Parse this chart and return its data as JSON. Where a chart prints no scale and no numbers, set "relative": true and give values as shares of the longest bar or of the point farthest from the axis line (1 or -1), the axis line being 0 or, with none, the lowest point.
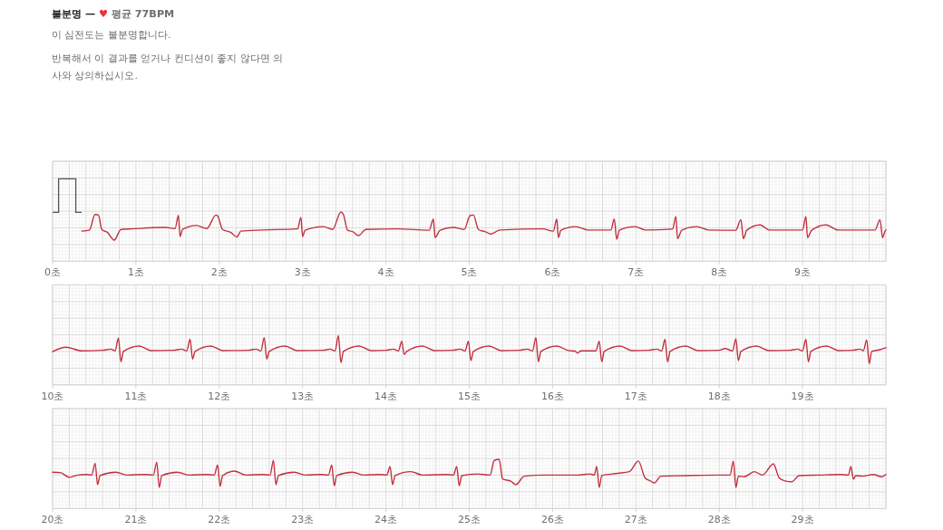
{
  "chart_data": [
    {
      "type": "line",
      "title": "불분명 — ♥ 평균 77BPM",
      "subtitle": "이 심전도는 불분명합니다.",
      "annotations": [
        "반복해서 이 결과를 얻거나 컨디션이 좋지 않다면 의사와 상의하십시오."
      ],
      "relative": true,
      "grid": true,
      "xlim": [
        0,
        10
      ],
      "xticks": [
        {
          "value": 0,
          "label": "0초"
        },
        {
          "value": 1,
          "label": "1초"
        },
        {
          "value": 2,
          "label": "2초"
        },
        {
          "value": 3,
          "label": "3초"
        },
        {
          "value": 4,
          "label": "4초"
        },
        {
          "value": 5,
          "label": "5초"
        },
        {
          "value": 6,
          "label": "6초"
        },
        {
          "value": 7,
          "label": "7초"
        },
        {
          "value": 8,
          "label": "8초"
        },
        {
          "value": 9,
          "label": "9초"
        }
      ],
      "x": [
        0.35,
        0.44,
        0.51,
        0.55,
        0.59,
        0.66,
        0.74,
        0.82,
        0.95,
        1.35,
        1.47,
        1.51,
        1.53,
        1.56,
        1.73,
        1.85,
        1.96,
        1.98,
        2.04,
        2.14,
        2.21,
        2.26,
        2.51,
        2.94,
        2.98,
        3.0,
        3.03,
        3.25,
        3.36,
        3.46,
        3.49,
        3.54,
        3.61,
        3.67,
        3.76,
        4.14,
        4.52,
        4.57,
        4.59,
        4.65,
        4.81,
        4.94,
        5.01,
        5.05,
        5.11,
        5.19,
        5.26,
        5.37,
        5.88,
        6.01,
        6.05,
        6.07,
        6.1,
        6.28,
        6.42,
        6.7,
        6.74,
        6.77,
        6.8,
        6.99,
        7.11,
        7.44,
        7.48,
        7.5,
        7.55,
        7.73,
        7.87,
        8.2,
        8.26,
        8.29,
        8.33,
        8.49,
        8.6,
        9.0,
        9.04,
        9.06,
        9.11,
        9.28,
        9.43,
        9.87,
        9.93,
        9.96,
        9.99,
        10
      ],
      "series": [
        {
          "color": "#c3303f",
          "values": [
            0.32,
            0.35,
            0.91,
            0.89,
            0.38,
            0.27,
            0,
            0.38,
            0.4,
            0.45,
            0.41,
            0.88,
            0.13,
            0.38,
            0.52,
            0.41,
            0.89,
            0.86,
            0.38,
            0.27,
            0.11,
            0.32,
            0.36,
            0.4,
            0.81,
            0.13,
            0.35,
            0.48,
            0.38,
            1,
            0.91,
            0.35,
            0.29,
            0.16,
            0.38,
            0.4,
            0.35,
            0.75,
            0.09,
            0.35,
            0.45,
            0.38,
            0.87,
            0.89,
            0.38,
            0.3,
            0.22,
            0.36,
            0.4,
            0.32,
            0.75,
            0.09,
            0.35,
            0.48,
            0.36,
            0.36,
            0.75,
            0.03,
            0.35,
            0.48,
            0.36,
            0.39,
            0.84,
            0.05,
            0.35,
            0.48,
            0.36,
            0.35,
            0.73,
            0.05,
            0.35,
            0.54,
            0.36,
            0.36,
            0.84,
            0.09,
            0.35,
            0.54,
            0.36,
            0.36,
            0.73,
            0.09,
            0.32,
            0.36
          ]
        }
      ]
    },
    {
      "type": "line",
      "relative": true,
      "grid": true,
      "xlim": [
        10,
        20
      ],
      "xticks": [
        {
          "value": 10,
          "label": "10초"
        },
        {
          "value": 11,
          "label": "11초"
        },
        {
          "value": 12,
          "label": "12초"
        },
        {
          "value": 13,
          "label": "13초"
        },
        {
          "value": 14,
          "label": "14초"
        },
        {
          "value": 15,
          "label": "15초"
        },
        {
          "value": 16,
          "label": "16초"
        },
        {
          "value": 17,
          "label": "17초"
        },
        {
          "value": 18,
          "label": "18초"
        },
        {
          "value": 19,
          "label": "19초"
        }
      ],
      "x": [
        10,
        10.16,
        10.35,
        10.6,
        10.7,
        10.75,
        10.79,
        10.82,
        10.85,
        11.04,
        11.18,
        11.45,
        11.55,
        11.61,
        11.65,
        11.68,
        11.71,
        11.9,
        12.04,
        12.35,
        12.44,
        12.5,
        12.54,
        12.57,
        12.6,
        12.79,
        12.93,
        13.25,
        13.33,
        13.39,
        13.43,
        13.46,
        13.49,
        13.68,
        13.82,
        14,
        14.09,
        14.15,
        14.19,
        14.22,
        14.25,
        14.44,
        14.58,
        14.8,
        14.89,
        14.95,
        14.99,
        15.02,
        15.05,
        15.24,
        15.38,
        15.6,
        15.7,
        15.76,
        15.8,
        15.83,
        15.86,
        16.05,
        16.19,
        16.27,
        16.3,
        16.34,
        16.52,
        16.56,
        16.59,
        16.62,
        16.81,
        16.95,
        17.15,
        17.25,
        17.31,
        17.35,
        17.38,
        17.41,
        17.6,
        17.74,
        18,
        18.07,
        18.16,
        18.2,
        18.23,
        18.26,
        18.45,
        18.59,
        18.85,
        18.94,
        19,
        19.04,
        19.07,
        19.1,
        19.29,
        19.43,
        19.6,
        19.69,
        19.73,
        19.77,
        19.8,
        19.83,
        19.93,
        20
      ],
      "series": [
        {
          "color": "#c3303f",
          "values": [
            0.43,
            0.59,
            0.46,
            0.48,
            0.52,
            0.46,
            0.91,
            0.07,
            0.44,
            0.63,
            0.47,
            0.48,
            0.52,
            0.46,
            0.87,
            0.17,
            0.44,
            0.63,
            0.47,
            0.48,
            0.52,
            0.46,
            0.93,
            0.17,
            0.44,
            0.63,
            0.47,
            0.48,
            0.52,
            0.46,
            1,
            0.04,
            0.44,
            0.63,
            0.47,
            0.48,
            0.52,
            0.46,
            0.8,
            0.33,
            0.44,
            0.63,
            0.47,
            0.48,
            0.52,
            0.46,
            0.8,
            0.11,
            0.44,
            0.63,
            0.47,
            0.48,
            0.52,
            0.46,
            0.93,
            0.07,
            0.44,
            0.63,
            0.47,
            0.45,
            0.38,
            0.46,
            0.46,
            0.8,
            0.07,
            0.44,
            0.63,
            0.47,
            0.48,
            0.52,
            0.46,
            0.87,
            0.07,
            0.44,
            0.63,
            0.47,
            0.48,
            0.54,
            0.46,
            0.89,
            0.11,
            0.44,
            0.63,
            0.47,
            0.48,
            0.52,
            0.46,
            0.87,
            0.07,
            0.44,
            0.63,
            0.47,
            0.48,
            0.52,
            0.46,
            0.85,
            0,
            0.44,
            0.5,
            0.57
          ]
        }
      ]
    },
    {
      "type": "line",
      "relative": true,
      "grid": true,
      "xlim": [
        20,
        30
      ],
      "xticks": [
        {
          "value": 20,
          "label": "20초"
        },
        {
          "value": 21,
          "label": "21초"
        },
        {
          "value": 22,
          "label": "22초"
        },
        {
          "value": 23,
          "label": "23초"
        },
        {
          "value": 24,
          "label": "24초"
        },
        {
          "value": 25,
          "label": "25초"
        },
        {
          "value": 26,
          "label": "26초"
        },
        {
          "value": 27,
          "label": "27초"
        },
        {
          "value": 28,
          "label": "28초"
        },
        {
          "value": 29,
          "label": "29초"
        }
      ],
      "x": [
        20,
        20.1,
        20.2,
        20.3,
        20.4,
        20.47,
        20.51,
        20.54,
        20.57,
        20.76,
        20.9,
        21.1,
        21.21,
        21.25,
        21.28,
        21.31,
        21.5,
        21.64,
        21.85,
        21.94,
        21.98,
        22.01,
        22.04,
        22.18,
        22.32,
        22.52,
        22.61,
        22.65,
        22.68,
        22.71,
        22.9,
        23.04,
        23.22,
        23.31,
        23.35,
        23.38,
        23.41,
        23.6,
        23.74,
        23.92,
        24.01,
        24.05,
        24.08,
        24.11,
        24.3,
        24.44,
        24.72,
        24.81,
        24.85,
        24.88,
        24.91,
        25.1,
        25.25,
        25.3,
        25.36,
        25.4,
        25.5,
        25.56,
        25.66,
        25.9,
        26.3,
        26.45,
        26.5,
        26.53,
        26.56,
        26.59,
        26.78,
        26.92,
        27.03,
        27.11,
        27.17,
        27.22,
        27.3,
        27.6,
        28,
        28.13,
        28.17,
        28.2,
        28.23,
        28.3,
        28.42,
        28.52,
        28.65,
        28.72,
        28.8,
        28.87,
        28.96,
        29.2,
        29.45,
        29.55,
        29.58,
        29.61,
        29.64,
        29.72,
        29.85,
        29.95,
        30
      ],
      "series": [
        {
          "color": "#c3303f",
          "values": [
            0.54,
            0.52,
            0.36,
            0.44,
            0.46,
            0.44,
            0.86,
            0.1,
            0.42,
            0.54,
            0.44,
            0.46,
            0.44,
            0.9,
            0,
            0.42,
            0.54,
            0.44,
            0.46,
            0.44,
            0.8,
            0.04,
            0.42,
            0.58,
            0.44,
            0.46,
            0.44,
            0.96,
            0.1,
            0.42,
            0.54,
            0.44,
            0.46,
            0.44,
            0.8,
            0.06,
            0.42,
            0.54,
            0.44,
            0.46,
            0.44,
            0.74,
            0.1,
            0.42,
            0.56,
            0.44,
            0.46,
            0.44,
            0.74,
            0.06,
            0.42,
            0.48,
            0.44,
            0.96,
            1,
            0.3,
            0.22,
            0.1,
            0.4,
            0.44,
            0.44,
            0.48,
            0.44,
            0.74,
            0,
            0.42,
            0.5,
            0.56,
            0.94,
            0.34,
            0.24,
            0.16,
            0.4,
            0.42,
            0.44,
            0.44,
            0.94,
            0,
            0.4,
            0.38,
            0.56,
            0.44,
            0.84,
            0.34,
            0.22,
            0.2,
            0.42,
            0.44,
            0.46,
            0.44,
            0.74,
            0.3,
            0.42,
            0.4,
            0.46,
            0.38,
            0.46
          ]
        }
      ]
    }
  ]
}
